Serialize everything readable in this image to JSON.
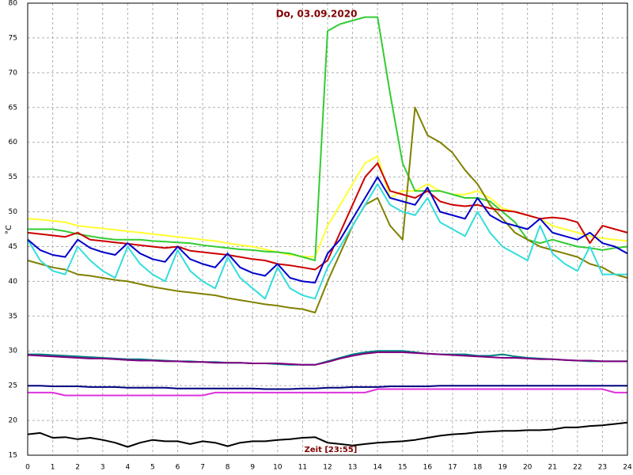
{
  "chart_data": {
    "type": "line",
    "title": "Do, 03.09.2020",
    "ylabel": "°C",
    "xlabel": "Zeit [23:55]",
    "x": [
      0,
      0.5,
      1,
      1.5,
      2,
      2.5,
      3,
      3.5,
      4,
      4.5,
      5,
      5.5,
      6,
      6.5,
      7,
      7.5,
      8,
      8.5,
      9,
      9.5,
      10,
      10.5,
      11,
      11.5,
      12,
      12.5,
      13,
      13.5,
      14,
      14.5,
      15,
      15.5,
      16,
      16.5,
      17,
      17.5,
      18,
      18.5,
      19,
      19.5,
      20,
      20.5,
      21,
      21.5,
      22,
      22.5,
      23,
      23.5,
      24
    ],
    "xlim": [
      0,
      24
    ],
    "xticks": [
      0,
      1,
      2,
      3,
      4,
      5,
      6,
      7,
      8,
      9,
      10,
      11,
      12,
      13,
      14,
      15,
      16,
      17,
      18,
      19,
      20,
      21,
      22,
      23,
      24
    ],
    "ylim": [
      15,
      80
    ],
    "yticks": [
      15,
      20,
      25,
      30,
      35,
      40,
      45,
      50,
      55,
      60,
      65,
      70,
      75,
      80
    ],
    "grid": true,
    "series": [
      {
        "color": "#ffff33",
        "values": [
          49,
          48.9,
          48.7,
          48.5,
          48,
          47.8,
          47.6,
          47.4,
          47.2,
          47,
          46.8,
          46.6,
          46.4,
          46.2,
          46,
          45.8,
          45.5,
          45.2,
          45,
          44.6,
          44.2,
          43.8,
          43.6,
          43.5,
          48,
          51,
          54,
          57,
          58,
          52,
          53,
          53,
          54,
          53,
          52.5,
          52.5,
          53,
          52,
          50.5,
          50,
          49.5,
          49,
          48,
          47.5,
          47,
          46.5,
          46.2,
          46,
          45.8
        ]
      },
      {
        "color": "#33cc33",
        "values": [
          47.5,
          47.5,
          47.5,
          47.2,
          46.8,
          46.5,
          46.2,
          46,
          46,
          46,
          45.8,
          45.7,
          45.6,
          45.5,
          45.2,
          45,
          44.8,
          44.6,
          44.5,
          44.3,
          44.2,
          44,
          43.5,
          43,
          76,
          77,
          77.5,
          78,
          78,
          67,
          57,
          53,
          53,
          53,
          52.5,
          52,
          52,
          51.5,
          50,
          48.5,
          46,
          45.5,
          46,
          45.5,
          45,
          44.8,
          44.5,
          44.8,
          45
        ]
      },
      {
        "color": "#808000",
        "values": [
          43,
          42.5,
          42,
          41.7,
          41,
          40.8,
          40.5,
          40.2,
          40,
          39.6,
          39.2,
          38.9,
          38.6,
          38.4,
          38.2,
          38,
          37.6,
          37.3,
          37,
          36.7,
          36.5,
          36.2,
          36,
          35.5,
          40,
          44,
          48,
          51,
          52,
          48,
          46,
          65,
          61,
          60,
          58.5,
          56,
          54,
          51,
          49,
          47,
          46,
          45,
          44.5,
          44,
          43.5,
          42.5,
          42,
          41,
          40.5
        ]
      },
      {
        "color": "#cc0000",
        "values": [
          47,
          46.8,
          46.6,
          46.4,
          47,
          46,
          45.8,
          45.6,
          45.4,
          45.2,
          45,
          44.8,
          45,
          44.4,
          44.2,
          44,
          43.8,
          43.5,
          43.2,
          43,
          42.5,
          42.3,
          42,
          41.7,
          43,
          47,
          51,
          55,
          57,
          53,
          52.5,
          52,
          53,
          51.5,
          51,
          50.8,
          51,
          50.5,
          50.2,
          50,
          49.5,
          49,
          49.2,
          49,
          48.5,
          45.5,
          48,
          47.5,
          47
        ]
      },
      {
        "color": "#33dddd",
        "values": [
          46,
          43,
          41.5,
          41,
          45,
          43,
          41.5,
          40.5,
          45,
          42.5,
          41,
          40,
          44.5,
          41.5,
          40,
          39,
          43.5,
          40.5,
          39,
          37.5,
          42,
          39,
          38,
          37.5,
          42,
          45,
          48,
          51,
          54,
          51,
          50,
          49.5,
          52,
          48.5,
          47.5,
          46.5,
          50,
          47,
          45,
          44,
          43,
          48,
          44,
          42.5,
          41.5,
          45,
          41,
          41,
          41
        ]
      },
      {
        "color": "#0000cc",
        "values": [
          46,
          44.5,
          43.8,
          43.5,
          46,
          44.8,
          44.2,
          43.8,
          45.5,
          44,
          43.2,
          42.8,
          45,
          43.2,
          42.5,
          42,
          44,
          42,
          41.2,
          40.8,
          42.5,
          40.5,
          40,
          39.8,
          44,
          46,
          49,
          52,
          55,
          52,
          51.5,
          51,
          53.5,
          50,
          49.5,
          49,
          52,
          49.5,
          48.5,
          48,
          47.5,
          49,
          47,
          46.5,
          46,
          47,
          45.5,
          45,
          44
        ]
      },
      {
        "color": "#008080",
        "values": [
          29.5,
          29.5,
          29.4,
          29.3,
          29.2,
          29.1,
          29,
          28.9,
          28.8,
          28.8,
          28.7,
          28.6,
          28.5,
          28.5,
          28.4,
          28.4,
          28.3,
          28.3,
          28.2,
          28.2,
          28.1,
          28,
          28,
          28,
          28.5,
          29,
          29.5,
          29.8,
          30,
          30,
          30,
          29.8,
          29.6,
          29.5,
          29.5,
          29.5,
          29.3,
          29.3,
          29.5,
          29.2,
          29,
          28.9,
          28.8,
          28.7,
          28.6,
          28.5,
          28.5,
          28.5,
          28.5
        ]
      },
      {
        "color": "#800080",
        "values": [
          29.4,
          29.3,
          29.2,
          29.1,
          29,
          28.9,
          28.9,
          28.8,
          28.7,
          28.6,
          28.6,
          28.5,
          28.5,
          28.4,
          28.4,
          28.3,
          28.3,
          28.3,
          28.2,
          28.2,
          28.2,
          28.1,
          28,
          28,
          28.4,
          28.9,
          29.3,
          29.6,
          29.8,
          29.8,
          29.8,
          29.7,
          29.6,
          29.5,
          29.4,
          29.3,
          29.2,
          29.1,
          29,
          29,
          28.9,
          28.8,
          28.8,
          28.7,
          28.6,
          28.6,
          28.5,
          28.5,
          28.5
        ]
      },
      {
        "color": "#000080",
        "values": [
          25,
          25,
          24.9,
          24.9,
          24.9,
          24.8,
          24.8,
          24.8,
          24.7,
          24.7,
          24.7,
          24.7,
          24.6,
          24.6,
          24.6,
          24.6,
          24.6,
          24.6,
          24.6,
          24.5,
          24.5,
          24.5,
          24.6,
          24.6,
          24.7,
          24.7,
          24.8,
          24.8,
          24.8,
          24.9,
          24.9,
          24.9,
          24.9,
          25,
          25,
          25,
          25,
          25,
          25,
          25,
          25,
          25,
          25,
          25,
          25,
          25,
          25,
          25,
          25
        ]
      },
      {
        "color": "#dd33dd",
        "values": [
          24,
          24,
          24,
          23.6,
          23.6,
          23.6,
          23.6,
          23.6,
          23.6,
          23.6,
          23.6,
          23.6,
          23.6,
          23.6,
          23.6,
          24,
          24,
          24,
          24,
          24,
          24,
          24,
          24,
          24,
          24,
          24,
          24,
          24,
          24.5,
          24.5,
          24.5,
          24.5,
          24.5,
          24.5,
          24.5,
          24.5,
          24.5,
          24.5,
          24.5,
          24.5,
          24.5,
          24.5,
          24.5,
          24.5,
          24.5,
          24.5,
          24.5,
          24,
          24
        ]
      },
      {
        "color": "#000000",
        "values": [
          18,
          18.2,
          17.5,
          17.6,
          17.3,
          17.5,
          17.2,
          16.8,
          16.2,
          16.8,
          17.2,
          17,
          17,
          16.6,
          17,
          16.8,
          16.3,
          16.8,
          17,
          17,
          17.2,
          17.3,
          17.5,
          17.6,
          16.8,
          16.6,
          16.4,
          16.6,
          16.8,
          16.9,
          17,
          17.2,
          17.5,
          17.8,
          18,
          18.1,
          18.3,
          18.4,
          18.5,
          18.5,
          18.6,
          18.6,
          18.7,
          19,
          19,
          19.2,
          19.3,
          19.5,
          19.7
        ]
      }
    ]
  }
}
